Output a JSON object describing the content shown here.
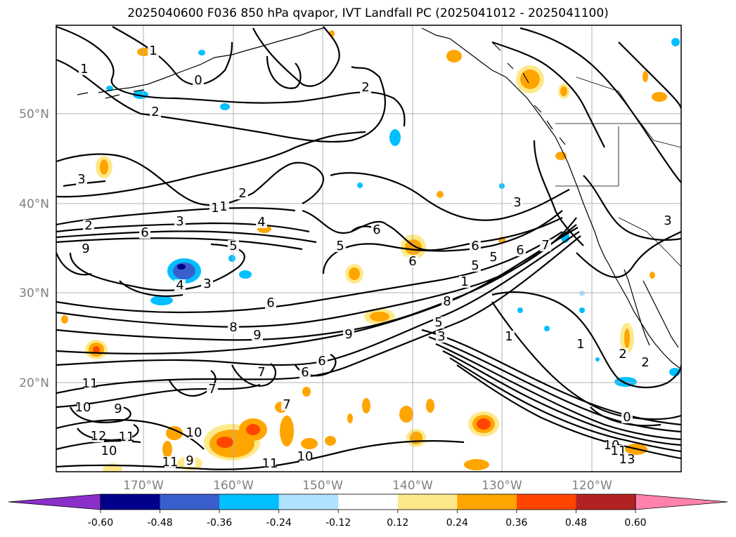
{
  "title": "2025040600 F036 850 hPa qvapor, IVT Landfall PC (2025041012 - 2025041100)",
  "map": {
    "lat_labels": [
      "50°N",
      "40°N",
      "30°N",
      "20°N"
    ],
    "lon_labels": [
      "170°W",
      "160°W",
      "150°W",
      "140°W",
      "130°W",
      "120°W"
    ],
    "contour_labels": [
      "1",
      "1",
      "2",
      "2",
      "3",
      "2",
      "1",
      "2",
      "3",
      "6",
      "4",
      "5",
      "6",
      "5",
      "6",
      "6",
      "5",
      "7",
      "1",
      "4",
      "3",
      "6",
      "8",
      "9",
      "5",
      "3",
      "1",
      "11",
      "10",
      "9",
      "12",
      "11",
      "10",
      "9",
      "10",
      "11",
      "10",
      "11",
      "0",
      "10",
      "11",
      "13",
      "2",
      "2",
      "1",
      "3",
      "9",
      "5",
      "6",
      "8",
      "7",
      "6",
      "9",
      "0",
      "1",
      "3",
      "3",
      "6",
      "7",
      "7"
    ]
  },
  "colorbar": {
    "colors": [
      "#8b2fc9",
      "#00008b",
      "#3a5fcd",
      "#00bfff",
      "#b0e2ff",
      "#ffffff",
      "#fee98a",
      "#ffa500",
      "#ff4500",
      "#b22222",
      "#ff82ab"
    ],
    "tick_labels": [
      "-0.60",
      "-0.48",
      "-0.36",
      "-0.24",
      "-0.12",
      "0.12",
      "0.24",
      "0.36",
      "0.48",
      "0.60"
    ]
  }
}
